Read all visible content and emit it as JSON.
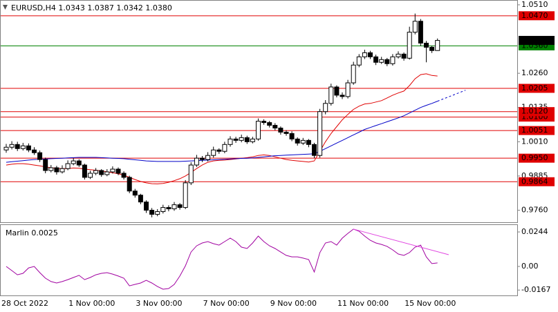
{
  "chart_data": [
    {
      "type": "candlestick",
      "title": "EURUSD,H4  1.0343 1.0387 1.0342 1.0380",
      "categories": [
        "28 Oct 2022",
        null,
        null,
        null,
        null,
        null,
        null,
        null,
        null,
        null,
        null,
        null,
        "1 Nov 00:00",
        null,
        null,
        null,
        null,
        null,
        null,
        null,
        null,
        null,
        null,
        null,
        "3 Nov 00:00",
        null,
        null,
        null,
        null,
        null,
        null,
        null,
        null,
        null,
        null,
        null,
        "7 Nov 00:00",
        null,
        null,
        null,
        null,
        null,
        null,
        null,
        null,
        null,
        null,
        null,
        "9 Nov 00:00",
        null,
        null,
        null,
        null,
        null,
        null,
        null,
        null,
        null,
        null,
        null,
        "11 Nov 00:00",
        null,
        null,
        null,
        null,
        null,
        null,
        null,
        null,
        null,
        null,
        null,
        "15 Nov 00:00",
        null,
        null,
        null,
        null,
        null,
        null,
        null,
        null,
        null,
        null
      ],
      "open": [
        0.998,
        0.999,
        1.0,
        0.9985,
        0.9995,
        0.998,
        0.997,
        0.9945,
        0.9905,
        0.9915,
        0.99,
        0.9912,
        0.993,
        0.994,
        0.9925,
        0.988,
        0.9895,
        0.9905,
        0.989,
        0.99,
        0.991,
        0.9895,
        0.988,
        0.983,
        0.9815,
        0.979,
        0.976,
        0.9745,
        0.9755,
        0.977,
        0.9765,
        0.978,
        0.977,
        0.986,
        0.9925,
        0.995,
        0.9945,
        0.996,
        0.998,
        0.9975,
        1.0,
        1.002,
        1.0015,
        1.0025,
        1.001,
        1.002,
        1.0085,
        1.008,
        1.007,
        1.006,
        1.0045,
        1.004,
        1.002,
        1.0005,
        1.0015,
        1.0,
        0.996,
        1.012,
        1.015,
        1.021,
        1.018,
        1.0175,
        1.0225,
        1.029,
        1.032,
        1.0335,
        1.032,
        1.03,
        1.031,
        1.0295,
        1.032,
        1.033,
        1.0315,
        1.041,
        1.045,
        1.037,
        1.0355,
        1.0343,
        null,
        null,
        null,
        null,
        null
      ],
      "high": [
        1.0002,
        1.0012,
        1.001,
        1.0006,
        1.0004,
        0.999,
        0.9978,
        0.9952,
        0.9925,
        0.9922,
        0.9924,
        0.9942,
        0.995,
        0.9946,
        0.993,
        0.9904,
        0.9914,
        0.991,
        0.991,
        0.992,
        0.9916,
        0.9902,
        0.9886,
        0.9838,
        0.982,
        0.9796,
        0.9768,
        0.9764,
        0.978,
        0.9778,
        0.979,
        0.9786,
        0.987,
        0.9935,
        0.9962,
        0.9958,
        0.9972,
        0.9992,
        0.9986,
        1.001,
        1.003,
        1.0028,
        1.0036,
        1.0032,
        1.0028,
        1.0095,
        1.0092,
        1.0086,
        1.0078,
        1.0066,
        1.0052,
        1.0048,
        1.0026,
        1.0024,
        1.002,
        1.0006,
        1.013,
        1.0162,
        1.0222,
        1.0216,
        1.019,
        1.0236,
        1.0302,
        1.033,
        1.0346,
        1.0342,
        1.0328,
        1.032,
        1.0316,
        1.033,
        1.034,
        1.0336,
        1.043,
        1.0478,
        1.0458,
        1.0378,
        1.036,
        1.0387,
        null,
        null,
        null,
        null,
        null
      ],
      "low": [
        0.997,
        0.9982,
        0.9976,
        0.9978,
        0.9972,
        0.9962,
        0.9936,
        0.9895,
        0.9898,
        0.989,
        0.9894,
        0.9906,
        0.9924,
        0.9918,
        0.9872,
        0.9874,
        0.9888,
        0.9882,
        0.9884,
        0.9894,
        0.9888,
        0.9872,
        0.9822,
        0.9806,
        0.9782,
        0.975,
        0.9734,
        0.9738,
        0.9748,
        0.9756,
        0.9758,
        0.9762,
        0.9764,
        0.9852,
        0.9918,
        0.9936,
        0.9938,
        0.9952,
        0.9966,
        0.9968,
        0.9992,
        1.0006,
        1.0008,
        1.0002,
        1.0004,
        1.0014,
        1.0072,
        1.0062,
        1.0052,
        1.0036,
        1.0032,
        1.0012,
        0.9996,
        0.9998,
        0.999,
        0.995,
        0.9952,
        1.011,
        1.0142,
        1.0172,
        1.0166,
        1.0168,
        1.0218,
        1.0282,
        1.0312,
        1.0312,
        1.029,
        1.0294,
        1.0286,
        1.0288,
        1.0314,
        1.0306,
        1.031,
        1.0402,
        1.036,
        1.03,
        1.0334,
        1.0342,
        null,
        null,
        null,
        null,
        null
      ],
      "close": [
        0.999,
        1.0,
        0.9985,
        0.9995,
        0.998,
        0.997,
        0.9945,
        0.9905,
        0.9915,
        0.99,
        0.9912,
        0.993,
        0.994,
        0.9925,
        0.988,
        0.9895,
        0.9905,
        0.989,
        0.99,
        0.991,
        0.9895,
        0.988,
        0.983,
        0.9815,
        0.979,
        0.976,
        0.9745,
        0.9755,
        0.977,
        0.9765,
        0.978,
        0.977,
        0.986,
        0.9925,
        0.995,
        0.9945,
        0.996,
        0.998,
        0.9975,
        1.0,
        1.002,
        1.0015,
        1.0025,
        1.001,
        1.002,
        1.0085,
        1.008,
        1.007,
        1.006,
        1.0045,
        1.004,
        1.002,
        1.0005,
        1.0015,
        1.0,
        0.996,
        1.012,
        1.015,
        1.021,
        1.018,
        1.0175,
        1.0225,
        1.029,
        1.032,
        1.0335,
        1.032,
        1.03,
        1.031,
        1.0295,
        1.032,
        1.033,
        1.0315,
        1.041,
        1.045,
        1.037,
        1.0355,
        1.0343,
        1.038,
        null,
        null,
        null,
        null,
        null
      ],
      "color_up": "#ffffff",
      "color_down": "#000000",
      "series": [
        {
          "color": "#e00000",
          "values": [
            0.9925,
            0.9928,
            0.993,
            0.993,
            0.9928,
            0.9925,
            0.9922,
            0.9918,
            0.9915,
            0.9913,
            0.9912,
            0.9912,
            0.9914,
            0.9913,
            0.991,
            0.9908,
            0.9906,
            0.9904,
            0.99,
            0.9897,
            0.9893,
            0.9888,
            0.988,
            0.9872,
            0.9865,
            0.986,
            0.9857,
            0.9856,
            0.9858,
            0.9862,
            0.9868,
            0.9875,
            0.9885,
            0.9898,
            0.9912,
            0.9925,
            0.9935,
            0.994,
            0.9942,
            0.9943,
            0.9945,
            0.9947,
            0.995,
            0.9952,
            0.9955,
            0.996,
            0.9962,
            0.996,
            0.9955,
            0.995,
            0.9945,
            0.9942,
            0.994,
            0.9938,
            0.9936,
            0.994,
            0.9975,
            1.001,
            1.004,
            1.0065,
            1.009,
            1.011,
            1.0128,
            1.014,
            1.0148,
            1.015,
            1.0155,
            1.016,
            1.017,
            1.018,
            1.0188,
            1.0195,
            1.0215,
            1.024,
            1.0255,
            1.0258,
            1.0252,
            1.025,
            null,
            null,
            null,
            null,
            null
          ]
        },
        {
          "color": "#0000c8",
          "values": [
            0.9935,
            0.9937,
            0.9939,
            0.9941,
            0.9943,
            0.9945,
            0.9946,
            0.9947,
            0.9948,
            0.9949,
            0.995,
            0.9951,
            0.9952,
            0.9953,
            0.9953,
            0.9953,
            0.9953,
            0.9952,
            0.9951,
            0.995,
            0.9949,
            0.9948,
            0.9946,
            0.9944,
            0.9942,
            0.994,
            0.9939,
            0.9938,
            0.9938,
            0.9938,
            0.9938,
            0.9938,
            0.9939,
            0.994,
            0.9941,
            0.9942,
            0.9943,
            0.9944,
            0.9945,
            0.9946,
            0.9947,
            0.9948,
            0.9949,
            0.995,
            0.9951,
            0.9953,
            0.9955,
            0.9957,
            0.9959,
            0.996,
            0.9961,
            0.9962,
            0.9963,
            0.9964,
            0.9965,
            0.9966,
            0.9975,
            0.9985,
            0.9995,
            1.0005,
            1.0015,
            1.0025,
            1.0035,
            1.0045,
            1.0055,
            1.0062,
            1.0069,
            1.0076,
            1.0083,
            1.009,
            1.0097,
            1.0105,
            1.0115,
            1.0125,
            1.0135,
            1.0143,
            1.015,
            1.0158,
            null,
            null,
            null,
            null,
            null
          ]
        },
        {
          "color": "#0000c8",
          "dashed": true,
          "values": [
            null,
            null,
            null,
            null,
            null,
            null,
            null,
            null,
            null,
            null,
            null,
            null,
            null,
            null,
            null,
            null,
            null,
            null,
            null,
            null,
            null,
            null,
            null,
            null,
            null,
            null,
            null,
            null,
            null,
            null,
            null,
            null,
            null,
            null,
            null,
            null,
            null,
            null,
            null,
            null,
            null,
            null,
            null,
            null,
            null,
            null,
            null,
            null,
            null,
            null,
            null,
            null,
            null,
            null,
            null,
            null,
            null,
            null,
            null,
            null,
            null,
            null,
            null,
            null,
            null,
            null,
            null,
            null,
            null,
            null,
            null,
            null,
            null,
            null,
            null,
            null,
            null,
            1.0158,
            1.0166,
            1.0174,
            1.0182,
            1.019,
            1.0198
          ]
        }
      ],
      "levels": [
        {
          "value": 1.047,
          "label": "1.0470",
          "color": "#e00000"
        },
        {
          "value": 1.0205,
          "label": "1.0205",
          "color": "#e00000"
        },
        {
          "value": 1.01,
          "label": "1.0100",
          "color": "#e00000"
        },
        {
          "value": 1.012,
          "label": "1.0120",
          "color": "#e00000"
        },
        {
          "value": 1.0051,
          "label": "1.0051",
          "color": "#e00000"
        },
        {
          "value": 0.995,
          "label": "0.9950",
          "color": "#e00000"
        },
        {
          "value": 0.9864,
          "label": "0.9864",
          "color": "#e00000"
        },
        {
          "value": 1.036,
          "label": "1.0360",
          "color": "#008000"
        }
      ],
      "price_marker": {
        "value": 1.038,
        "label": "1.0380",
        "color": "#000000"
      },
      "ylim": [
        0.9716,
        1.0525
      ],
      "yticks": [
        {
          "value": 1.051,
          "label": "1.0510"
        },
        {
          "value": 1.026,
          "label": "1.0260"
        },
        1.0135,
        {
          "value": 1.001,
          "label": "1.0010"
        },
        0.9885,
        {
          "value": 0.976,
          "label": "0.9760"
        }
      ]
    },
    {
      "type": "line",
      "title": "Marlin 0.0025",
      "series": [
        {
          "color": "#a000a0",
          "values": [
            0.0,
            -0.0029,
            -0.0059,
            -0.0049,
            -0.001,
            0.0,
            -0.0044,
            -0.0083,
            -0.0107,
            -0.0117,
            -0.0107,
            -0.0093,
            -0.0078,
            -0.0063,
            -0.0093,
            -0.0078,
            -0.0059,
            -0.0049,
            -0.0044,
            -0.0054,
            -0.0068,
            -0.0083,
            -0.0137,
            -0.0127,
            -0.0117,
            -0.0098,
            -0.0117,
            -0.0142,
            -0.0161,
            -0.0156,
            -0.0127,
            -0.0068,
            0.0005,
            0.0102,
            0.0146,
            0.0166,
            0.0176,
            0.0161,
            0.0151,
            0.0176,
            0.02,
            0.0176,
            0.0137,
            0.0127,
            0.0166,
            0.0215,
            0.0176,
            0.0146,
            0.0127,
            0.0102,
            0.0078,
            0.0068,
            0.0068,
            0.0059,
            0.0049,
            -0.0039,
            0.0098,
            0.0166,
            0.0176,
            0.0151,
            0.02,
            0.0234,
            0.0264,
            0.0249,
            0.0215,
            0.0185,
            0.0166,
            0.0156,
            0.0142,
            0.0117,
            0.0088,
            0.0078,
            0.0098,
            0.0137,
            0.0151,
            0.0068,
            0.002,
            0.0025,
            null,
            null,
            null,
            null,
            null
          ]
        }
      ],
      "trend_line": {
        "x": [
          62,
          79
        ],
        "values": [
          0.0264,
          0.0083
        ],
        "color": "#e040e0"
      },
      "ylim": [
        -0.0205,
        0.0293
      ],
      "yticks": [
        0.0244,
        {
          "value": 0,
          "label": "0.00"
        },
        -0.0167
      ]
    }
  ]
}
